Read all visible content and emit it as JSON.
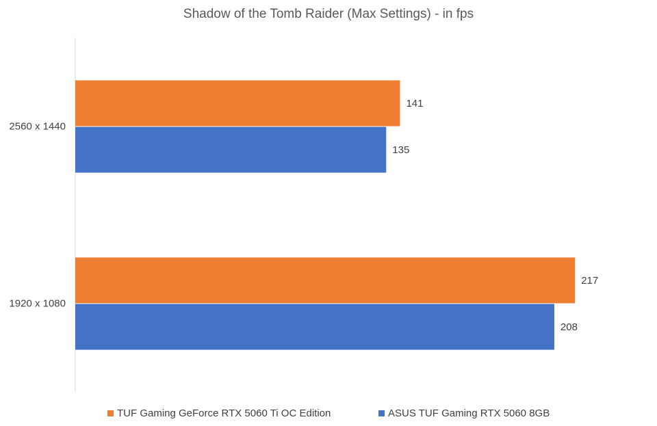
{
  "chart_data": {
    "type": "bar",
    "orientation": "horizontal",
    "title": "Shadow of the Tomb Raider (Max Settings) - in fps",
    "categories": [
      "2560 x 1440",
      "1920 x 1080"
    ],
    "series": [
      {
        "name": "TUF Gaming GeForce RTX 5060 Ti OC Edition",
        "color": "#ED7D31",
        "values": [
          141,
          217
        ]
      },
      {
        "name": "ASUS TUF Gaming RTX 5060 8GB",
        "color": "#4472C4",
        "values": [
          135,
          208
        ]
      }
    ],
    "data_labels": true,
    "grid": false,
    "legend": "bottom",
    "xlim": [
      0,
      252
    ]
  }
}
